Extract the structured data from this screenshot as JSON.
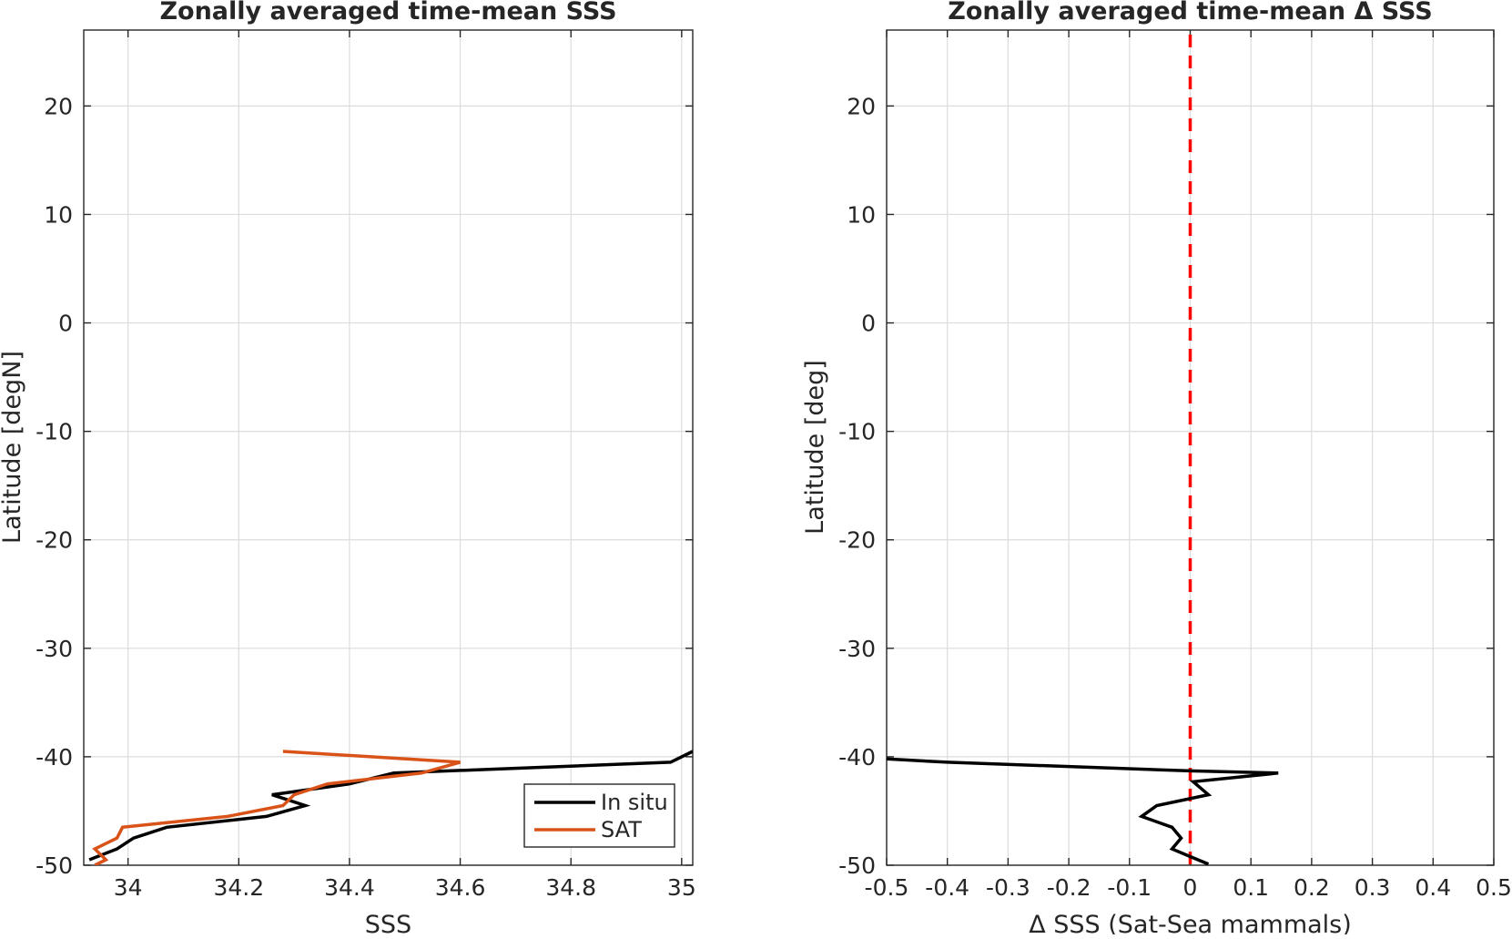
{
  "colors": {
    "in_situ": "#000000",
    "sat": "#D95319",
    "zero_line": "#FF0000",
    "grid": "#dcdcdc",
    "axis": "#262626"
  },
  "chart_data": [
    {
      "type": "line",
      "title": "Zonally averaged time-mean SSS",
      "xlabel": "SSS",
      "ylabel": "Latitude [degN]",
      "xlim": [
        33.92,
        35.02
      ],
      "ylim": [
        -50,
        27
      ],
      "xticks": [
        34,
        34.2,
        34.4,
        34.6,
        34.8,
        35
      ],
      "xtick_labels": [
        "34",
        "34.2",
        "34.4",
        "34.6",
        "34.8",
        "35"
      ],
      "yticks": [
        -50,
        -40,
        -30,
        -20,
        -10,
        0,
        10,
        20
      ],
      "ytick_labels": [
        "-50",
        "-40",
        "-30",
        "-20",
        "-10",
        "0",
        "10",
        "20"
      ],
      "grid": true,
      "legend": {
        "position": "bottom-right",
        "entries": [
          "In situ",
          "SAT"
        ]
      },
      "series": [
        {
          "name": "In situ",
          "color": "#000000",
          "points": [
            [
              35.02,
              -39.5
            ],
            [
              34.98,
              -40.5
            ],
            [
              34.48,
              -41.5
            ],
            [
              34.4,
              -42.5
            ],
            [
              34.26,
              -43.5
            ],
            [
              34.32,
              -44.5
            ],
            [
              34.25,
              -45.5
            ],
            [
              34.07,
              -46.5
            ],
            [
              34.01,
              -47.5
            ],
            [
              33.98,
              -48.5
            ],
            [
              33.93,
              -49.5
            ]
          ]
        },
        {
          "name": "SAT",
          "color": "#D95319",
          "points": [
            [
              34.28,
              -39.5
            ],
            [
              34.6,
              -40.5
            ],
            [
              34.53,
              -41.5
            ],
            [
              34.36,
              -42.5
            ],
            [
              34.3,
              -43.5
            ],
            [
              34.28,
              -44.5
            ],
            [
              34.18,
              -45.5
            ],
            [
              33.99,
              -46.5
            ],
            [
              33.98,
              -47.5
            ],
            [
              33.94,
              -48.5
            ],
            [
              33.96,
              -49.5
            ],
            [
              33.94,
              -50.0
            ]
          ]
        }
      ]
    },
    {
      "type": "line",
      "title": "Zonally averaged time-mean Δ SSS",
      "xlabel": "Δ SSS (Sat-Sea mammals)",
      "ylabel": "Latitude [deg]",
      "xlim": [
        -0.5,
        0.5
      ],
      "ylim": [
        -50,
        27
      ],
      "xticks": [
        -0.5,
        -0.4,
        -0.3,
        -0.2,
        -0.1,
        0,
        0.1,
        0.2,
        0.3,
        0.4,
        0.5
      ],
      "xtick_labels": [
        "-0.5",
        "-0.4",
        "-0.3",
        "-0.2",
        "-0.1",
        "0",
        "0.1",
        "0.2",
        "0.3",
        "0.4",
        "0.5"
      ],
      "yticks": [
        -50,
        -40,
        -30,
        -20,
        -10,
        0,
        10,
        20
      ],
      "ytick_labels": [
        "-50",
        "-40",
        "-30",
        "-20",
        "-10",
        "0",
        "10",
        "20"
      ],
      "grid": true,
      "reference_line": {
        "x": 0,
        "style": "dashed",
        "color": "#FF0000"
      },
      "series": [
        {
          "color": "#000000",
          "points": [
            [
              -0.5,
              -40.2
            ],
            [
              -0.4,
              -40.5
            ],
            [
              0.0,
              -41.3
            ],
            [
              0.145,
              -41.5
            ],
            [
              0.005,
              -42.3
            ],
            [
              0.03,
              -43.5
            ],
            [
              -0.055,
              -44.5
            ],
            [
              -0.08,
              -45.5
            ],
            [
              -0.03,
              -46.5
            ],
            [
              -0.015,
              -47.5
            ],
            [
              -0.03,
              -48.5
            ],
            [
              0.0,
              -49.2
            ],
            [
              0.03,
              -49.9
            ]
          ]
        }
      ]
    }
  ]
}
